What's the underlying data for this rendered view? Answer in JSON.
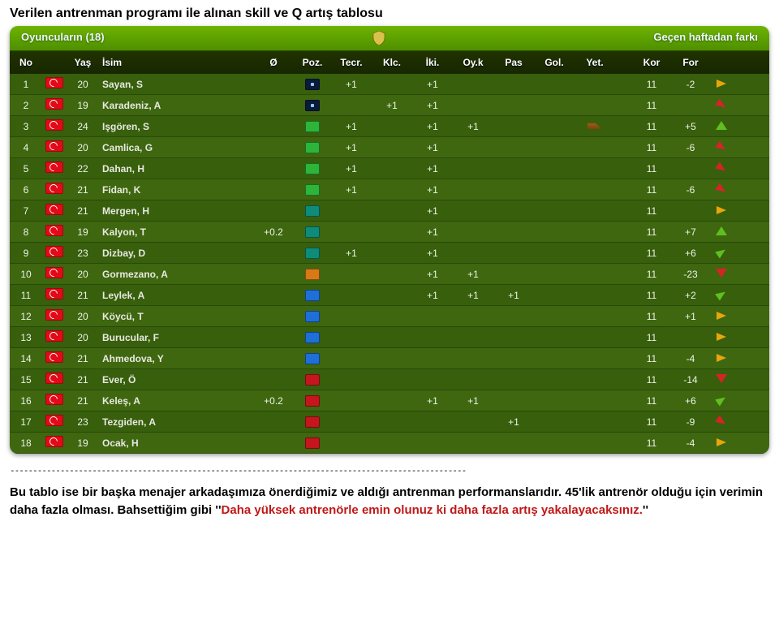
{
  "title": "Verilen antrenman programı ile alınan skill ve Q artış tablosu",
  "panel": {
    "left": "Oyuncuların (18)",
    "right": "Geçen haftadan farkı"
  },
  "columns": {
    "no": "No",
    "age": "Yaş",
    "name": "İsim",
    "o": "Ø",
    "poz": "Poz.",
    "tecr": "Tecr.",
    "klc": "Klc.",
    "iki": "İki.",
    "oyk": "Oy.k",
    "pas": "Pas",
    "gol": "Gol.",
    "yet": "Yet.",
    "kor": "Kor",
    "for": "For"
  },
  "rows": [
    {
      "no": "1",
      "age": "20",
      "name": "Sayan, S",
      "o": "",
      "poz": "dkblue",
      "tecr": "+1",
      "klc": "",
      "iki": "+1",
      "oyk": "",
      "pas": "",
      "gol": "",
      "yet": "",
      "kor": "11",
      "for": "-2",
      "trend": "flat"
    },
    {
      "no": "2",
      "age": "19",
      "name": "Karadeniz, A",
      "o": "",
      "poz": "dkblue",
      "tecr": "",
      "klc": "+1",
      "iki": "+1",
      "oyk": "",
      "pas": "",
      "gol": "",
      "yet": "",
      "kor": "11",
      "for": "",
      "trend": "dn45"
    },
    {
      "no": "3",
      "age": "24",
      "name": "Işgören, S",
      "o": "",
      "poz": "green",
      "tecr": "+1",
      "klc": "",
      "iki": "+1",
      "oyk": "+1",
      "pas": "",
      "gol": "",
      "yet": "boot",
      "kor": "11",
      "for": "+5",
      "trend": "up"
    },
    {
      "no": "4",
      "age": "20",
      "name": "Camlica, G",
      "o": "",
      "poz": "green",
      "tecr": "+1",
      "klc": "",
      "iki": "+1",
      "oyk": "",
      "pas": "",
      "gol": "",
      "yet": "",
      "kor": "11",
      "for": "-6",
      "trend": "dn45"
    },
    {
      "no": "5",
      "age": "22",
      "name": "Dahan, H",
      "o": "",
      "poz": "green",
      "tecr": "+1",
      "klc": "",
      "iki": "+1",
      "oyk": "",
      "pas": "",
      "gol": "",
      "yet": "",
      "kor": "11",
      "for": "",
      "trend": "dn45"
    },
    {
      "no": "6",
      "age": "21",
      "name": "Fidan, K",
      "o": "",
      "poz": "green",
      "tecr": "+1",
      "klc": "",
      "iki": "+1",
      "oyk": "",
      "pas": "",
      "gol": "",
      "yet": "",
      "kor": "11",
      "for": "-6",
      "trend": "dn45"
    },
    {
      "no": "7",
      "age": "21",
      "name": "Mergen, H",
      "o": "",
      "poz": "teal",
      "tecr": "",
      "klc": "",
      "iki": "+1",
      "oyk": "",
      "pas": "",
      "gol": "",
      "yet": "",
      "kor": "11",
      "for": "",
      "trend": "flat"
    },
    {
      "no": "8",
      "age": "19",
      "name": "Kalyon, T",
      "o": "+0.2",
      "poz": "teal",
      "tecr": "",
      "klc": "",
      "iki": "+1",
      "oyk": "",
      "pas": "",
      "gol": "",
      "yet": "",
      "kor": "11",
      "for": "+7",
      "trend": "up"
    },
    {
      "no": "9",
      "age": "23",
      "name": "Dizbay, D",
      "o": "",
      "poz": "teal",
      "tecr": "+1",
      "klc": "",
      "iki": "+1",
      "oyk": "",
      "pas": "",
      "gol": "",
      "yet": "",
      "kor": "11",
      "for": "+6",
      "trend": "up45"
    },
    {
      "no": "10",
      "age": "20",
      "name": "Gormezano, A",
      "o": "",
      "poz": "orange",
      "tecr": "",
      "klc": "",
      "iki": "+1",
      "oyk": "+1",
      "pas": "",
      "gol": "",
      "yet": "",
      "kor": "11",
      "for": "-23",
      "trend": "down"
    },
    {
      "no": "11",
      "age": "21",
      "name": "Leylek, A",
      "o": "",
      "poz": "blue",
      "tecr": "",
      "klc": "",
      "iki": "+1",
      "oyk": "+1",
      "pas": "+1",
      "gol": "",
      "yet": "",
      "kor": "11",
      "for": "+2",
      "trend": "up45"
    },
    {
      "no": "12",
      "age": "20",
      "name": "Köycü, T",
      "o": "",
      "poz": "blue",
      "tecr": "",
      "klc": "",
      "iki": "",
      "oyk": "",
      "pas": "",
      "gol": "",
      "yet": "",
      "kor": "11",
      "for": "+1",
      "trend": "flat"
    },
    {
      "no": "13",
      "age": "20",
      "name": "Burucular, F",
      "o": "",
      "poz": "blue",
      "tecr": "",
      "klc": "",
      "iki": "",
      "oyk": "",
      "pas": "",
      "gol": "",
      "yet": "",
      "kor": "11",
      "for": "",
      "trend": "flat"
    },
    {
      "no": "14",
      "age": "21",
      "name": "Ahmedova, Y",
      "o": "",
      "poz": "blue",
      "tecr": "",
      "klc": "",
      "iki": "",
      "oyk": "",
      "pas": "",
      "gol": "",
      "yet": "",
      "kor": "11",
      "for": "-4",
      "trend": "flat"
    },
    {
      "no": "15",
      "age": "21",
      "name": "Ever, Ö",
      "o": "",
      "poz": "red",
      "tecr": "",
      "klc": "",
      "iki": "",
      "oyk": "",
      "pas": "",
      "gol": "",
      "yet": "",
      "kor": "11",
      "for": "-14",
      "trend": "down"
    },
    {
      "no": "16",
      "age": "21",
      "name": "Keleş, A",
      "o": "+0.2",
      "poz": "red",
      "tecr": "",
      "klc": "",
      "iki": "+1",
      "oyk": "+1",
      "pas": "",
      "gol": "",
      "yet": "",
      "kor": "11",
      "for": "+6",
      "trend": "up45"
    },
    {
      "no": "17",
      "age": "23",
      "name": "Tezgiden, A",
      "o": "",
      "poz": "red",
      "tecr": "",
      "klc": "",
      "iki": "",
      "oyk": "",
      "pas": "+1",
      "gol": "",
      "yet": "",
      "kor": "11",
      "for": "-9",
      "trend": "dn45"
    },
    {
      "no": "18",
      "age": "19",
      "name": "Ocak, H",
      "o": "",
      "poz": "red",
      "tecr": "",
      "klc": "",
      "iki": "",
      "oyk": "",
      "pas": "",
      "gol": "",
      "yet": "",
      "kor": "11",
      "for": "-4",
      "trend": "flat"
    }
  ],
  "sep": "----------------------------------------------------------------------------------------------------",
  "para": {
    "p1a": "Bu tablo ise bir başka menajer arkadaşımıza önerdiğimiz ve aldığı antrenman performanslarıdır. 45'lik antrenör olduğu için verimin daha fazla olması. Bahsettiğim gibi ''",
    "p1hl": "Daha yüksek antrenörle emin olunuz ki daha fazla artış yakalayacaksınız.",
    "p1b": "''"
  }
}
